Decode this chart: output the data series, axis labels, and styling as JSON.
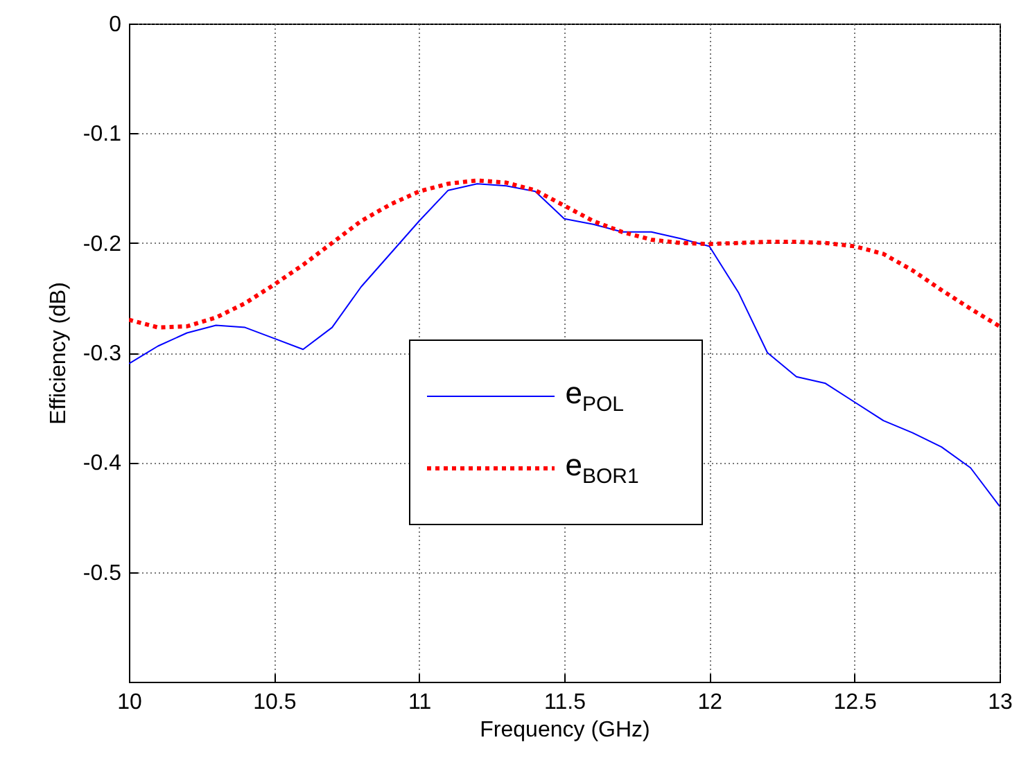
{
  "chart_data": {
    "type": "line",
    "xlabel": "Frequency (GHz)",
    "ylabel": "Efficiency (dB)",
    "x": [
      10,
      10.1,
      10.2,
      10.3,
      10.4,
      10.5,
      10.6,
      10.7,
      10.8,
      10.9,
      11,
      11.1,
      11.2,
      11.3,
      11.4,
      11.5,
      11.6,
      11.7,
      11.8,
      11.9,
      12,
      12.1,
      12.2,
      12.3,
      12.4,
      12.5,
      12.6,
      12.7,
      12.8,
      12.9,
      13
    ],
    "series": [
      {
        "name": "e$_{POL}$",
        "color": "#0000ff",
        "line_style": "solid",
        "values": [
          -0.31,
          -0.294,
          -0.282,
          -0.275,
          -0.277,
          -0.287,
          -0.297,
          -0.277,
          -0.24,
          -0.21,
          -0.18,
          -0.152,
          -0.146,
          -0.148,
          -0.153,
          -0.178,
          -0.183,
          -0.19,
          -0.19,
          -0.196,
          -0.203,
          -0.245,
          -0.3,
          -0.322,
          -0.328,
          -0.345,
          -0.362,
          -0.373,
          -0.386,
          -0.405,
          -0.44
        ]
      },
      {
        "name": "e$_{BOR1}$",
        "color": "#ff0000",
        "line_style": "dotted",
        "values": [
          -0.27,
          -0.277,
          -0.276,
          -0.268,
          -0.255,
          -0.238,
          -0.22,
          -0.2,
          -0.18,
          -0.165,
          -0.153,
          -0.146,
          -0.143,
          -0.145,
          -0.152,
          -0.166,
          -0.18,
          -0.19,
          -0.197,
          -0.2,
          -0.201,
          -0.2,
          -0.199,
          -0.199,
          -0.2,
          -0.203,
          -0.21,
          -0.225,
          -0.243,
          -0.26,
          -0.276
        ]
      }
    ],
    "xlim": [
      10,
      13
    ],
    "xticks": [
      10,
      10.5,
      11,
      11.5,
      12,
      12.5,
      13
    ],
    "ylim": [
      -0.6,
      0
    ],
    "yticks": [
      -0.5,
      -0.4,
      -0.3,
      -0.2,
      -0.1,
      0
    ],
    "grid": true,
    "legend": "center"
  }
}
